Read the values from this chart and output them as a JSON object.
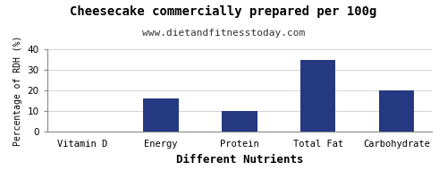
{
  "title": "Cheesecake commercially prepared per 100g",
  "subtitle": "www.dietandfitnesstoday.com",
  "xlabel": "Different Nutrients",
  "ylabel": "Percentage of RDH (%)",
  "categories": [
    "Vitamin D",
    "Energy",
    "Protein",
    "Total Fat",
    "Carbohydrate"
  ],
  "values": [
    0,
    16,
    10,
    35,
    20
  ],
  "bar_color": "#253882",
  "ylim": [
    0,
    40
  ],
  "yticks": [
    0,
    10,
    20,
    30,
    40
  ],
  "background_color": "#ffffff",
  "plot_background": "#ffffff",
  "title_fontsize": 10,
  "subtitle_fontsize": 8,
  "xlabel_fontsize": 9,
  "ylabel_fontsize": 7,
  "tick_fontsize": 7.5
}
